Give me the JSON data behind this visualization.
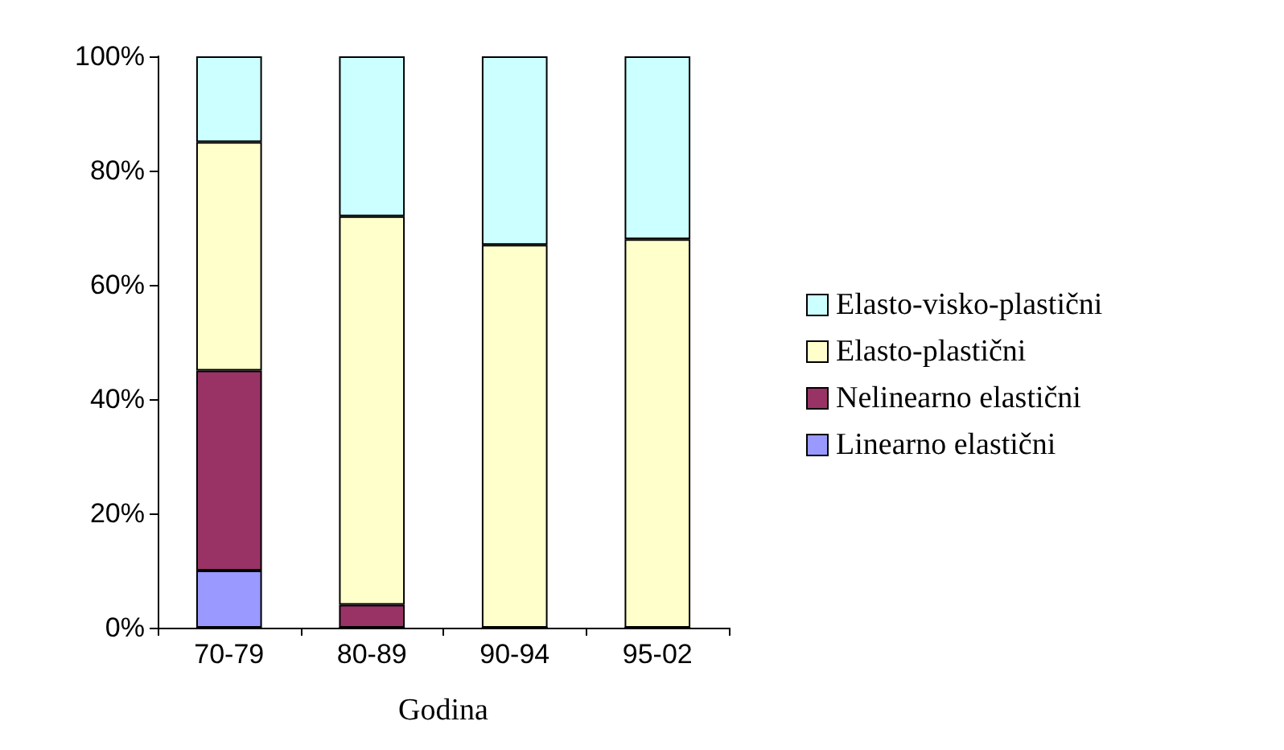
{
  "chart_data": {
    "type": "bar",
    "stacked": true,
    "xlabel": "Godina",
    "categories": [
      "70-79",
      "80-89",
      "90-94",
      "95-02"
    ],
    "series": [
      {
        "name": "Linearno elastični",
        "color": "#9999ff",
        "values": [
          10,
          0,
          0,
          0
        ]
      },
      {
        "name": "Nelinearno elastični",
        "color": "#993366",
        "values": [
          35,
          4,
          0,
          0
        ]
      },
      {
        "name": "Elasto-plastični",
        "color": "#ffffcc",
        "values": [
          40,
          68,
          67,
          68
        ]
      },
      {
        "name": "Elasto-visko-plastični",
        "color": "#ccffff",
        "values": [
          15,
          28,
          33,
          32
        ]
      }
    ],
    "ylim": [
      0,
      100
    ],
    "yticks": [
      {
        "value": 0,
        "label": "0%"
      },
      {
        "value": 20,
        "label": "20%"
      },
      {
        "value": 40,
        "label": "40%"
      },
      {
        "value": 60,
        "label": "60%"
      },
      {
        "value": 80,
        "label": "80%"
      },
      {
        "value": 100,
        "label": "100%"
      }
    ],
    "grid": false,
    "legend": "right"
  }
}
